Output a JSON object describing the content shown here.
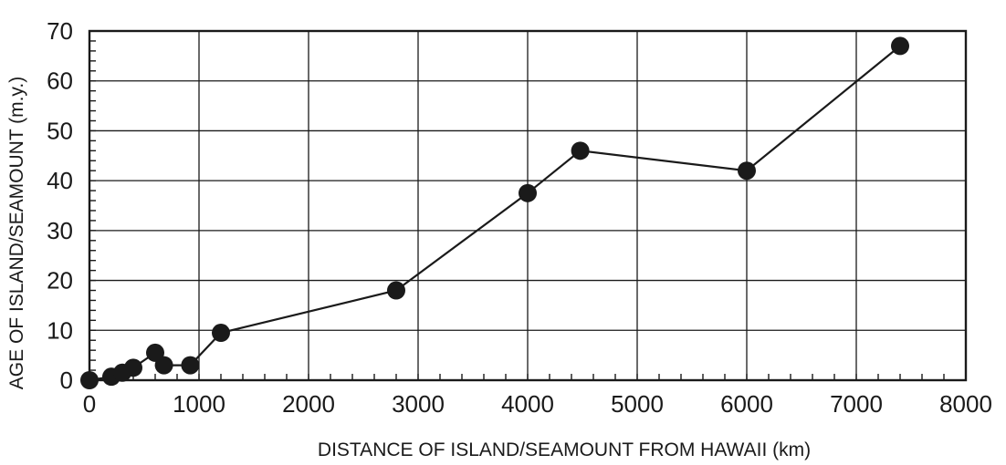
{
  "chart_data": {
    "type": "line",
    "title": "",
    "xlabel": "DISTANCE OF ISLAND/SEAMOUNT FROM HAWAII (km)",
    "ylabel": "AGE OF ISLAND/SEAMOUNT (m.y.)",
    "xlim": [
      0,
      8000
    ],
    "ylim": [
      0,
      70
    ],
    "x_ticks": [
      0,
      1000,
      2000,
      3000,
      4000,
      5000,
      6000,
      7000,
      8000
    ],
    "y_ticks": [
      0,
      10,
      20,
      30,
      40,
      50,
      60,
      70
    ],
    "x_tick_labels": [
      "0",
      "1000",
      "2000",
      "3000",
      "4000",
      "5000",
      "6000",
      "7000",
      "8000"
    ],
    "y_tick_labels": [
      "0",
      "10",
      "20",
      "30",
      "40",
      "50",
      "60",
      "70"
    ],
    "grid": true,
    "legend": "none",
    "series": [
      {
        "x": [
          0,
          200,
          300,
          400,
          600,
          680,
          920,
          1200,
          2800,
          4000,
          4480,
          6000,
          7400
        ],
        "y": [
          0,
          0.7,
          1.5,
          2.5,
          5.5,
          3,
          3,
          9.5,
          18,
          37.5,
          46,
          42,
          67
        ]
      }
    ],
    "color": "#1a1a1a"
  }
}
